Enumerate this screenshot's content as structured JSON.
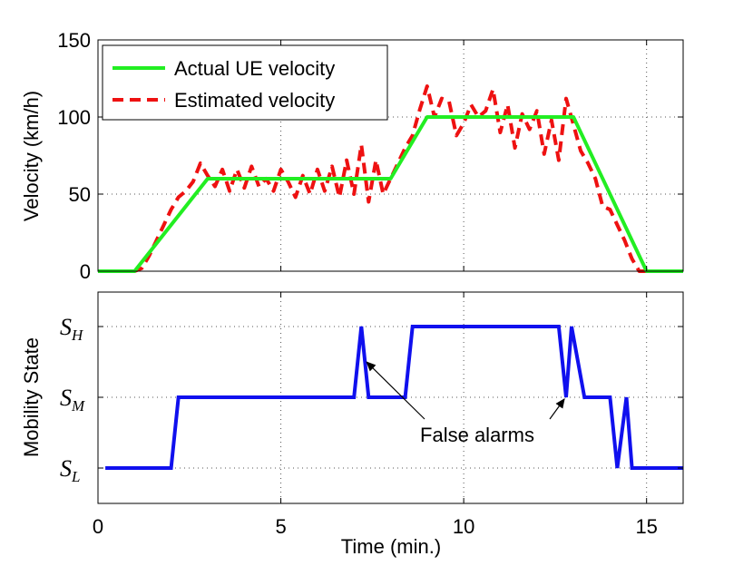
{
  "chart_data": [
    {
      "type": "line",
      "ylabel": "Velocity (km/h)",
      "xlim": [
        0,
        16
      ],
      "ylim": [
        0,
        150
      ],
      "yticks": [
        "0",
        "50",
        "100",
        "150"
      ],
      "grid": true,
      "legend_position": "top-left",
      "colors": {
        "actual": "#22ee22",
        "estimated": "#ee1111"
      },
      "series": [
        {
          "name": "Actual UE velocity",
          "style": "solid",
          "x": [
            0,
            1,
            3,
            8,
            9,
            13,
            15,
            16
          ],
          "y": [
            0,
            0,
            60,
            60,
            100,
            100,
            0,
            0
          ]
        },
        {
          "name": "Estimated velocity",
          "style": "dashed",
          "x": [
            0,
            0.5,
            1,
            1.2,
            1.4,
            1.6,
            1.8,
            2.0,
            2.2,
            2.4,
            2.6,
            2.8,
            3.0,
            3.2,
            3.4,
            3.6,
            3.8,
            4.0,
            4.2,
            4.4,
            4.6,
            4.8,
            5.0,
            5.2,
            5.4,
            5.6,
            5.8,
            6.0,
            6.2,
            6.4,
            6.6,
            6.8,
            7.0,
            7.2,
            7.4,
            7.6,
            7.8,
            8.0,
            8.2,
            8.4,
            8.6,
            8.8,
            9.0,
            9.2,
            9.4,
            9.6,
            9.8,
            10.0,
            10.2,
            10.4,
            10.6,
            10.8,
            11.0,
            11.2,
            11.4,
            11.6,
            11.8,
            12.0,
            12.2,
            12.4,
            12.6,
            12.8,
            13.0,
            13.2,
            13.4,
            13.6,
            13.8,
            14.0,
            14.2,
            14.4,
            14.6,
            14.8,
            15.0,
            15.5,
            16
          ],
          "y": [
            0,
            0,
            0,
            2,
            10,
            20,
            30,
            40,
            48,
            52,
            58,
            70,
            62,
            55,
            66,
            52,
            66,
            54,
            68,
            55,
            60,
            52,
            66,
            58,
            48,
            62,
            50,
            66,
            52,
            68,
            48,
            72,
            50,
            82,
            45,
            72,
            50,
            60,
            70,
            80,
            88,
            105,
            120,
            100,
            112,
            110,
            88,
            96,
            108,
            100,
            104,
            118,
            90,
            108,
            80,
            102,
            92,
            104,
            76,
            98,
            72,
            112,
            95,
            78,
            70,
            60,
            42,
            40,
            30,
            20,
            8,
            0,
            0,
            0,
            0
          ]
        }
      ]
    },
    {
      "type": "line",
      "xlabel": "Time (min.)",
      "ylabel": "Mobility State",
      "xlim": [
        0,
        16
      ],
      "xticks": [
        "0",
        "5",
        "10",
        "15"
      ],
      "ylim": [
        0,
        4
      ],
      "ystates": [
        {
          "name": "S",
          "sub": "L",
          "level": 1
        },
        {
          "name": "S",
          "sub": "M",
          "level": 2
        },
        {
          "name": "S",
          "sub": "H",
          "level": 3
        }
      ],
      "grid": true,
      "colors": {
        "state": "#1010ee"
      },
      "series": [
        {
          "name": "Mobility state",
          "x": [
            0.2,
            2.0,
            2.2,
            7.0,
            7.2,
            7.4,
            8.4,
            8.6,
            12.6,
            12.8,
            12.95,
            13.3,
            14.0,
            14.2,
            14.45,
            14.6,
            16
          ],
          "y": [
            1,
            1,
            2,
            2,
            3,
            2,
            2,
            3,
            3,
            2,
            3,
            2,
            2,
            1,
            2,
            1,
            1
          ]
        }
      ],
      "annotations": [
        {
          "text": "False alarms",
          "targets": [
            [
              7.25,
              2.6
            ],
            [
              12.8,
              2.0
            ]
          ]
        }
      ]
    }
  ]
}
